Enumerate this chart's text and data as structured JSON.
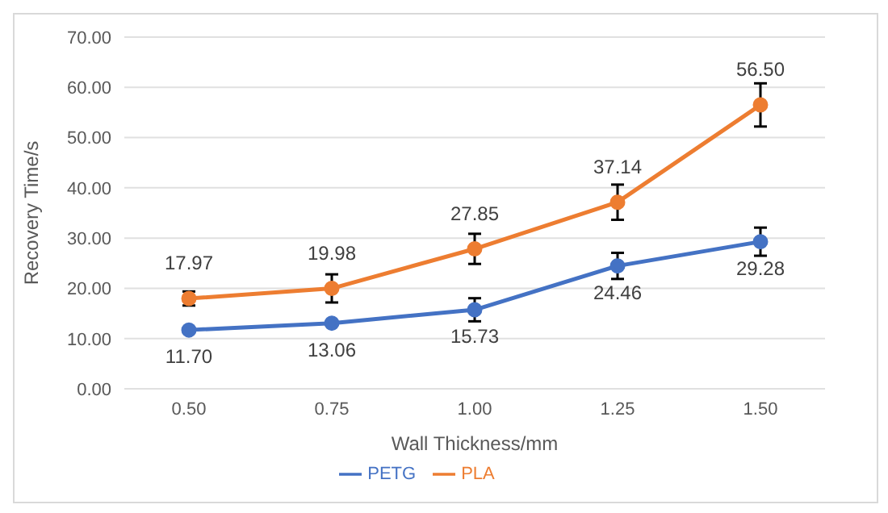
{
  "chart_data": {
    "type": "line",
    "xlabel": "Wall Thickness/mm",
    "ylabel": "Recovery Time/s",
    "categories": [
      "0.50",
      "0.75",
      "1.00",
      "1.25",
      "1.50"
    ],
    "series": [
      {
        "name": "PETG",
        "color": "#4472c4",
        "values": [
          11.7,
          13.06,
          15.73,
          24.46,
          29.28
        ],
        "errors": [
          null,
          null,
          2.3,
          2.6,
          2.8
        ],
        "value_labels": [
          "11.70",
          "13.06",
          "15.73",
          "24.46",
          "29.28"
        ]
      },
      {
        "name": "PLA",
        "color": "#ed7d31",
        "values": [
          17.97,
          19.98,
          27.85,
          37.14,
          56.5
        ],
        "errors": [
          1.4,
          2.8,
          3,
          3.5,
          4.3
        ],
        "value_labels": [
          "17.97",
          "19.98",
          "27.85",
          "37.14",
          "56.50"
        ]
      }
    ],
    "ylim": [
      0,
      70
    ],
    "yticks": [
      {
        "value": 0,
        "label": "0.00"
      },
      {
        "value": 10,
        "label": "10.00"
      },
      {
        "value": 20,
        "label": "20.00"
      },
      {
        "value": 30,
        "label": "30.00"
      },
      {
        "value": 40,
        "label": "40.00"
      },
      {
        "value": 50,
        "label": "50.00"
      },
      {
        "value": 60,
        "label": "60.00"
      },
      {
        "value": 70,
        "label": "70.00"
      }
    ],
    "grid": "y",
    "legend": "bottom",
    "marker": "circle",
    "line_style": "solid"
  }
}
